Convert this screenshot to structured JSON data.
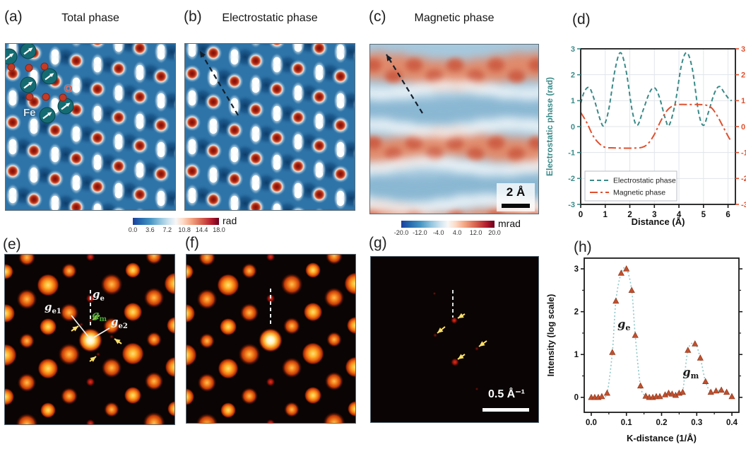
{
  "panels": {
    "a": {
      "label": "(a)",
      "title": "Total phase"
    },
    "b": {
      "label": "(b)",
      "title": "Electrostatic phase"
    },
    "c": {
      "label": "(c)",
      "title": "Magnetic phase"
    },
    "d": {
      "label": "(d)"
    },
    "e": {
      "label": "(e)"
    },
    "f": {
      "label": "(f)"
    },
    "g": {
      "label": "(g)"
    },
    "h": {
      "label": "(h)"
    }
  },
  "annotations": {
    "fe_label": "Fe",
    "o_label": "O",
    "scalebar_c": "2 Å",
    "scalebar_g": "0.5 Å⁻¹",
    "ge1": {
      "main": "g",
      "sub": "e1"
    },
    "ge2": {
      "main": "g",
      "sub": "e2"
    },
    "ge": {
      "main": "g",
      "sub": "e"
    },
    "gm": {
      "main": "g",
      "sub": "m"
    }
  },
  "colorbars": [
    {
      "label": "rad",
      "ticks": [
        "0.0",
        "3.6",
        "7.2",
        "10.8",
        "14.4",
        "18.0"
      ]
    },
    {
      "label": "mrad",
      "ticks": [
        "-20.0",
        "-12.0",
        "-4.0",
        "4.0",
        "12.0",
        "20.0"
      ]
    }
  ],
  "chart_data": [
    {
      "type": "line",
      "panel": "d",
      "xlabel": "Distance (Å)",
      "ylabel_left": "Electrostatic phase (rad)",
      "xlim": [
        0,
        6.3
      ],
      "ylim": [
        -3,
        3
      ],
      "xticks": [
        0,
        1,
        2,
        3,
        4,
        5,
        6
      ],
      "yticks": [
        -3,
        -2,
        -1,
        0,
        1,
        2,
        3
      ],
      "right_yticks": [
        -3,
        -2,
        -1,
        0,
        1,
        2,
        3
      ],
      "grid": true,
      "grid_color": "#e1e5ea",
      "legend": [
        "Electrostatic phase",
        "Magnetic phase"
      ],
      "legend_position": "lower left",
      "series": [
        {
          "name": "Electrostatic phase",
          "color": "#3a8a88",
          "style": "dashed",
          "x": [
            0,
            0.15,
            0.35,
            0.55,
            0.8,
            0.95,
            1.15,
            1.4,
            1.62,
            1.85,
            2.1,
            2.3,
            2.55,
            2.8,
            3.0,
            3.2,
            3.45,
            3.6,
            3.85,
            4.1,
            4.32,
            4.55,
            4.8,
            5.0,
            5.2,
            5.45,
            5.65,
            5.85,
            6.05,
            6.15
          ],
          "y": [
            0.9,
            1.35,
            1.5,
            1.05,
            0.25,
            0.05,
            0.7,
            2.2,
            2.85,
            2.15,
            0.6,
            0.05,
            0.65,
            1.3,
            1.5,
            1.15,
            0.3,
            0.05,
            0.9,
            2.35,
            2.85,
            2.2,
            0.55,
            0.05,
            0.55,
            1.3,
            1.55,
            1.3,
            1.05,
            1.0
          ]
        },
        {
          "name": "Magnetic phase",
          "color": "#e0502e",
          "style": "dashdot",
          "x": [
            0,
            0.25,
            0.5,
            0.75,
            1.0,
            1.35,
            1.7,
            2.1,
            2.5,
            2.75,
            3.0,
            3.25,
            3.5,
            3.75,
            4.0,
            4.4,
            4.8,
            5.1,
            5.35,
            5.6,
            5.85,
            6.05,
            6.15
          ],
          "y": [
            0.55,
            0.15,
            -0.35,
            -0.65,
            -0.8,
            -0.82,
            -0.83,
            -0.83,
            -0.8,
            -0.65,
            -0.3,
            0.2,
            0.6,
            0.8,
            0.85,
            0.85,
            0.85,
            0.83,
            0.7,
            0.35,
            -0.1,
            -0.45,
            -0.55
          ]
        }
      ]
    },
    {
      "type": "scatter",
      "panel": "h",
      "xlabel": "K-distance (1/Å)",
      "ylabel": "Intensity (log scale)",
      "xlim": [
        -0.02,
        0.42
      ],
      "ylim": [
        -0.35,
        3.25
      ],
      "xticks": [
        0.0,
        0.1,
        0.2,
        0.3,
        0.4
      ],
      "yticks": [
        0,
        1,
        2,
        3
      ],
      "grid": false,
      "marker": "triangle",
      "marker_color": "#c0502e",
      "line_color": "#8ec7c7",
      "line_style": "dotted",
      "x": [
        0.0,
        0.01,
        0.02,
        0.03,
        0.045,
        0.06,
        0.07,
        0.085,
        0.1,
        0.115,
        0.125,
        0.14,
        0.155,
        0.165,
        0.175,
        0.185,
        0.195,
        0.21,
        0.22,
        0.23,
        0.24,
        0.25,
        0.26,
        0.275,
        0.295,
        0.31,
        0.325,
        0.34,
        0.355,
        0.37,
        0.385,
        0.4
      ],
      "y": [
        0,
        0,
        0,
        0.02,
        0.1,
        1.05,
        2.25,
        2.9,
        3.0,
        2.5,
        1.45,
        0.27,
        0.03,
        0,
        0,
        0.02,
        0.02,
        0.06,
        0.1,
        0.08,
        0.05,
        0.1,
        0.12,
        1.1,
        1.25,
        0.92,
        0.37,
        0.12,
        0.15,
        0.17,
        0.12,
        0.02
      ],
      "annotations": [
        {
          "main": "g",
          "sub": "e",
          "x": 0.093,
          "y": 1.62
        },
        {
          "main": "g",
          "sub": "m",
          "x": 0.283,
          "y": 0.5
        }
      ]
    }
  ]
}
